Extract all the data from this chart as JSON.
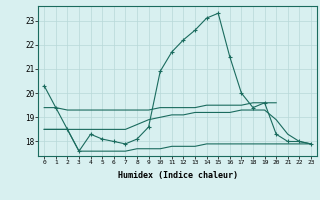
{
  "x": [
    0,
    1,
    2,
    3,
    4,
    5,
    6,
    7,
    8,
    9,
    10,
    11,
    12,
    13,
    14,
    15,
    16,
    17,
    18,
    19,
    20,
    21,
    22,
    23
  ],
  "line_main": [
    20.3,
    19.4,
    18.5,
    17.6,
    18.3,
    18.1,
    18.0,
    17.9,
    18.1,
    18.6,
    20.9,
    21.7,
    22.2,
    22.6,
    23.1,
    23.3,
    21.5,
    20.0,
    19.4,
    19.6,
    18.3,
    18.0,
    18.0,
    17.9
  ],
  "line_upper": [
    19.4,
    19.4,
    19.3,
    19.3,
    19.3,
    19.3,
    19.3,
    19.3,
    19.3,
    19.3,
    19.4,
    19.4,
    19.4,
    19.4,
    19.5,
    19.5,
    19.5,
    19.5,
    19.6,
    19.6,
    19.6,
    null,
    null,
    null
  ],
  "line_mid": [
    18.5,
    18.5,
    18.5,
    18.5,
    18.5,
    18.5,
    18.5,
    18.5,
    18.7,
    18.9,
    19.0,
    19.1,
    19.1,
    19.2,
    19.2,
    19.2,
    19.2,
    19.3,
    19.3,
    19.3,
    18.9,
    18.3,
    18.0,
    17.9
  ],
  "line_lower": [
    18.5,
    18.5,
    18.5,
    17.6,
    17.6,
    17.6,
    17.6,
    17.6,
    17.7,
    17.7,
    17.7,
    17.8,
    17.8,
    17.8,
    17.9,
    17.9,
    17.9,
    17.9,
    17.9,
    17.9,
    17.9,
    17.9,
    17.9,
    17.9
  ],
  "color": "#1a6b5e",
  "bg_color": "#d8f0f0",
  "grid_color": "#b8d8d8",
  "xlabel": "Humidex (Indice chaleur)",
  "ylim": [
    17.4,
    23.6
  ],
  "yticks": [
    18,
    19,
    20,
    21,
    22,
    23
  ],
  "xticks": [
    0,
    1,
    2,
    3,
    4,
    5,
    6,
    7,
    8,
    9,
    10,
    11,
    12,
    13,
    14,
    15,
    16,
    17,
    18,
    19,
    20,
    21,
    22,
    23
  ]
}
